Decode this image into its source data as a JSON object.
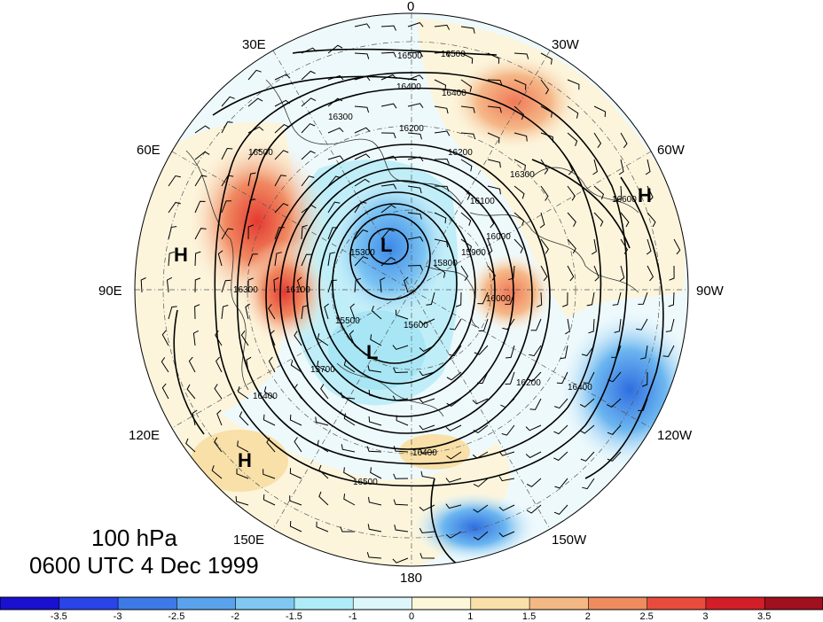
{
  "map": {
    "projection": "north polar stereographic",
    "longitude_labels": [
      "0",
      "30W",
      "60W",
      "90W",
      "120W",
      "150W",
      "180",
      "150E",
      "120E",
      "90E",
      "60E",
      "30E"
    ],
    "pressure_centers": [
      {
        "type": "L",
        "label": "L"
      },
      {
        "type": "L",
        "label": "L"
      },
      {
        "type": "H",
        "label": "H"
      },
      {
        "type": "H",
        "label": "H"
      },
      {
        "type": "H",
        "label": "H"
      }
    ],
    "contour_labels": [
      "16500",
      "16500",
      "16400",
      "16400",
      "16300",
      "16300",
      "16200",
      "16200",
      "16100",
      "16000",
      "15900",
      "15800",
      "15700",
      "15600",
      "15500",
      "15300",
      "16400",
      "16500",
      "16400",
      "16200",
      "16100",
      "16000",
      "16300",
      "16500",
      "16400",
      "16600"
    ],
    "shading_colors": {
      "negative_strong": "#2244dd",
      "negative": "#4f9be8",
      "negative_weak": "#a8e6f5",
      "neutral_cool": "#dff6fb",
      "neutral_warm": "#fcf5dc",
      "positive_weak": "#f7d8a0",
      "positive": "#f0a070",
      "positive_strong": "#e03a30"
    }
  },
  "title": {
    "level": "100 hPa",
    "time": "0600 UTC 4 Dec 1999"
  },
  "colorbar": {
    "labels": [
      "-3.5",
      "-3",
      "-2.5",
      "-2",
      "-1.5",
      "-1",
      "0",
      "1",
      "1.5",
      "2",
      "2.5",
      "3",
      "3.5"
    ],
    "colors": [
      "#1a10d0",
      "#2a44e8",
      "#3d7ae8",
      "#5aa2ec",
      "#80c8f2",
      "#b0ecf8",
      "#ddf6fa",
      "#fdf7da",
      "#f8e0a8",
      "#f3b884",
      "#ee8c60",
      "#e84c3c",
      "#d21e28",
      "#a0101e"
    ]
  }
}
